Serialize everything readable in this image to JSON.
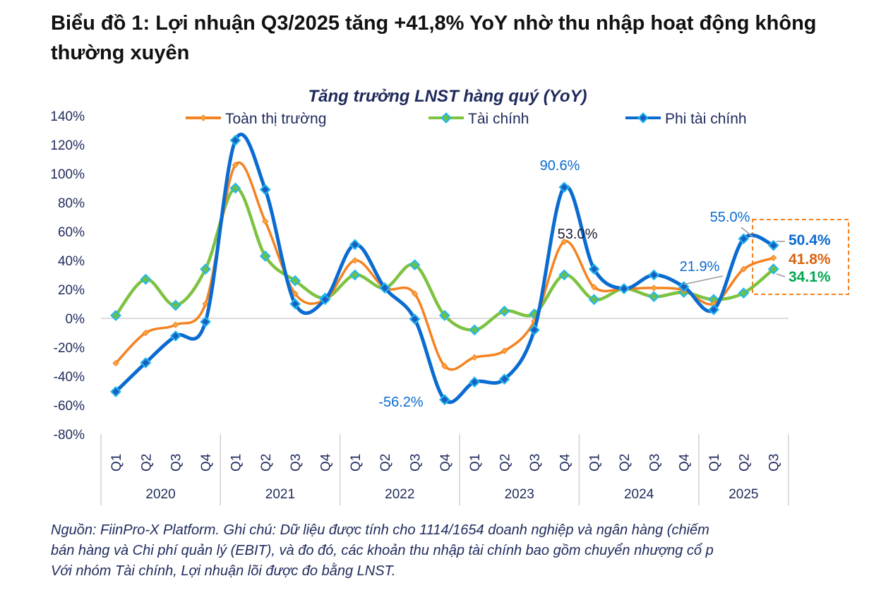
{
  "heading": "Biểu đồ 1: Lợi nhuận Q3/2025 tăng +41,8% YoY nhờ thu nhập hoạt động không thường xuyên",
  "note_lines": [
    "Nguồn: FiinPro-X Platform. Ghi chú: Dữ liệu được tính cho 1114/1654 doanh nghiệp và ngân hàng (chiếm",
    "bán hàng và Chi phí quản lý (EBIT), và đo đó, các khoản thu nhập tài chính bao gồm chuyển nhượng cổ p",
    "Với nhóm Tài chính, Lợi nhuận lõi được đo bằng LNST."
  ],
  "chart_data": {
    "type": "line",
    "title": "Tăng trưởng LNST hàng quý (YoY)",
    "xlabel": "",
    "ylabel": "",
    "ylim": [
      -80,
      140
    ],
    "yticks": [
      "-80%",
      "-60%",
      "-40%",
      "-20%",
      "0%",
      "20%",
      "40%",
      "60%",
      "80%",
      "100%",
      "120%",
      "140%"
    ],
    "grid": false,
    "legend": "top",
    "years": [
      {
        "label": "2020",
        "quarters": [
          "Q1",
          "Q2",
          "Q3",
          "Q4"
        ]
      },
      {
        "label": "2021",
        "quarters": [
          "Q1",
          "Q2",
          "Q3",
          "Q4"
        ]
      },
      {
        "label": "2022",
        "quarters": [
          "Q1",
          "Q2",
          "Q3",
          "Q4"
        ]
      },
      {
        "label": "2023",
        "quarters": [
          "Q1",
          "Q2",
          "Q3",
          "Q4"
        ]
      },
      {
        "label": "2024",
        "quarters": [
          "Q1",
          "Q2",
          "Q3",
          "Q4"
        ]
      },
      {
        "label": "2025",
        "quarters": [
          "Q1",
          "Q2",
          "Q3"
        ]
      }
    ],
    "series": [
      {
        "name": "Toàn thị trường",
        "color": "#f58220",
        "marker": "small-diamond",
        "values": [
          -31,
          -10,
          -4.5,
          10,
          106,
          67,
          17,
          13,
          40,
          21,
          17,
          -33,
          -27,
          -22.5,
          -2,
          53.0,
          21.5,
          20.5,
          21,
          19.5,
          10,
          34,
          41.8
        ]
      },
      {
        "name": "Tài chính",
        "color": "#7dc241",
        "marker": "diamond",
        "values": [
          2,
          27,
          9,
          34,
          90,
          43,
          26,
          14,
          30,
          21,
          37,
          2,
          -8,
          5,
          3,
          30,
          13,
          20.5,
          15,
          18,
          13,
          17.5,
          34.1
        ]
      },
      {
        "name": "Phi tài chính",
        "color": "#0a6bd1",
        "marker": "diamond",
        "values": [
          -50.7,
          -30.7,
          -12.2,
          -2.4,
          123,
          89,
          10,
          13,
          51,
          21,
          -0.5,
          -56.2,
          -44,
          -42,
          -8,
          90.6,
          34,
          20.5,
          30,
          21.9,
          6,
          55.0,
          50.4
        ]
      }
    ],
    "annotations": [
      {
        "text": "90.6%",
        "series": "Phi tài chính",
        "year": "2023",
        "quarter": "Q4",
        "color": "#0a6bd1"
      },
      {
        "text": "53.0%",
        "series": "Toàn thị trường",
        "year": "2023",
        "quarter": "Q4",
        "color": "#1a1a3a"
      },
      {
        "text": "-56.2%",
        "series": "Phi tài chính",
        "year": "2022",
        "quarter": "Q4",
        "color": "#0a6bd1"
      },
      {
        "text": "21.9%",
        "series": "Phi tài chính",
        "year": "2024",
        "quarter": "Q4",
        "color": "#0a6bd1"
      },
      {
        "text": "55.0%",
        "series": "Phi tài chính",
        "year": "2025",
        "quarter": "Q2",
        "color": "#0a6bd1"
      },
      {
        "text": "50.4%",
        "series": "Phi tài chính",
        "year": "2025",
        "quarter": "Q3",
        "color": "#0a6bd1",
        "bold": true
      },
      {
        "text": "41.8%",
        "series": "Toàn thị trường",
        "year": "2025",
        "quarter": "Q3",
        "color": "#d9620f",
        "bold": true
      },
      {
        "text": "34.1%",
        "series": "Tài chính",
        "year": "2025",
        "quarter": "Q3",
        "color": "#00a650",
        "bold": true
      }
    ],
    "highlight_box_color": "#f58220"
  }
}
